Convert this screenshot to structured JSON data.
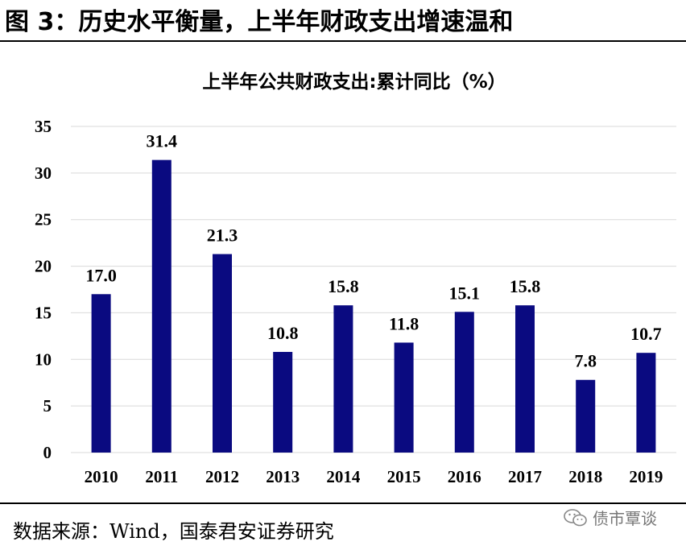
{
  "figure_title": "图 3：历史水平衡量，上半年财政支出增速温和",
  "source_note": "数据来源：Wind，国泰君安证券研究",
  "watermark": {
    "text": "债市覃谈",
    "icon": "wechat-icon"
  },
  "chart_data": {
    "type": "bar",
    "title": "上半年公共财政支出:累计同比（%）",
    "categories": [
      "2010",
      "2011",
      "2012",
      "2013",
      "2014",
      "2015",
      "2016",
      "2017",
      "2018",
      "2019"
    ],
    "values": [
      17.0,
      31.4,
      21.3,
      10.8,
      15.8,
      11.8,
      15.1,
      15.8,
      7.8,
      10.7
    ],
    "data_labels": [
      "17.0",
      "31.4",
      "21.3",
      "10.8",
      "15.8",
      "11.8",
      "15.1",
      "15.8",
      "7.8",
      "10.7"
    ],
    "ylim": [
      0,
      35
    ],
    "yticks": [
      0,
      5,
      10,
      15,
      20,
      25,
      30,
      35
    ],
    "xlabel": "",
    "ylabel": "",
    "grid": true,
    "bar_color": "#0a0a80",
    "grid_color": "#d9d9d9"
  }
}
